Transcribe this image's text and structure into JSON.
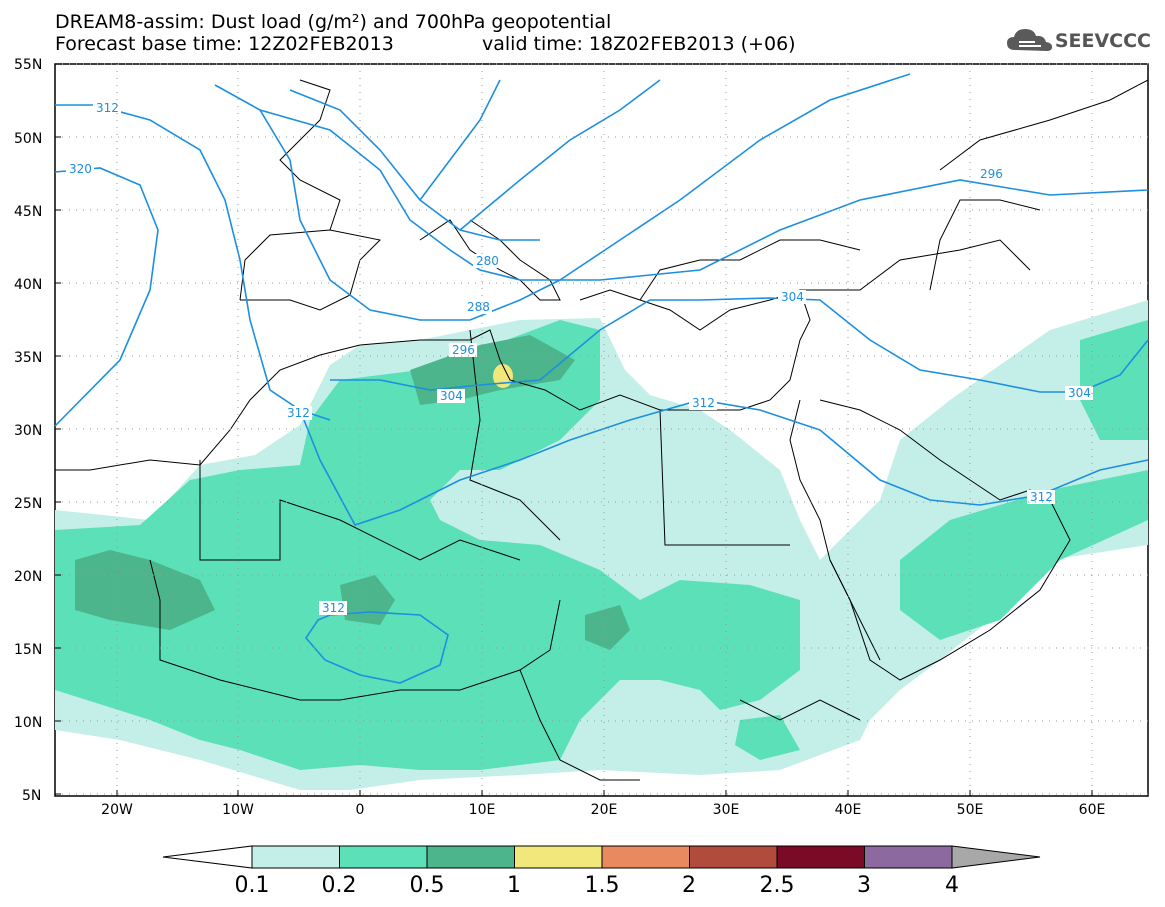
{
  "header": {
    "line1": "DREAM8-assim: Dust load (g/m²) and 700hPa geopotential",
    "line2a": "Forecast base time: 12Z02FEB2013",
    "line2b": "valid time: 18Z02FEB2013 (+06)",
    "logo_text": "SEEVCCC",
    "logo_icon": "cloud-icon"
  },
  "axes": {
    "lat_labels": [
      "55N",
      "50N",
      "45N",
      "40N",
      "35N",
      "30N",
      "25N",
      "20N",
      "15N",
      "10N",
      "5N"
    ],
    "lon_labels": [
      "20W",
      "10W",
      "0",
      "10E",
      "20E",
      "30E",
      "40E",
      "50E",
      "60E"
    ]
  },
  "contours": {
    "labels": [
      "312",
      "320",
      "280",
      "288",
      "296",
      "304",
      "304",
      "312",
      "312",
      "296",
      "304",
      "312",
      "312"
    ]
  },
  "colorbar": {
    "boundaries": [
      "0.1",
      "0.2",
      "0.5",
      "1",
      "1.5",
      "2",
      "2.5",
      "3",
      "4"
    ],
    "colors": [
      "#c3efe8",
      "#5ce0b8",
      "#4cb58b",
      "#f2e77a",
      "#e8895f",
      "#b14b3c",
      "#7a0a25",
      "#8c6aa0",
      "#a8a8a8"
    ]
  }
}
